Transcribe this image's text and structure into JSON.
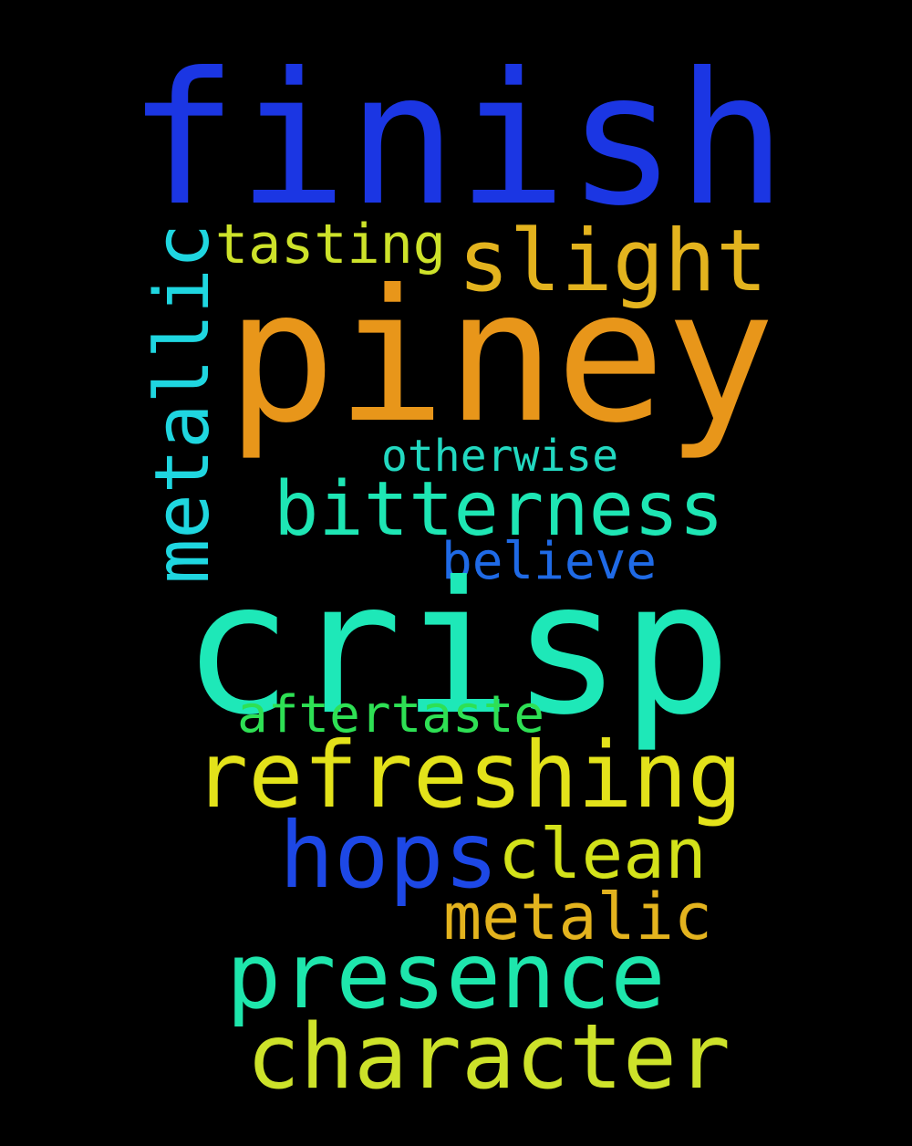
{
  "background_color": "#000000",
  "words": [
    {
      "text": "finish",
      "color": "#1b36e3"
    },
    {
      "text": "tasting",
      "color": "#cde22a"
    },
    {
      "text": "slight",
      "color": "#e3b31e"
    },
    {
      "text": "piney",
      "color": "#e8961a"
    },
    {
      "text": "metallic",
      "color": "#1fd6e0",
      "orientation": "vertical"
    },
    {
      "text": "otherwise",
      "color": "#22d8c0"
    },
    {
      "text": "bitterness",
      "color": "#1ee6b4"
    },
    {
      "text": "believe",
      "color": "#1f6ae6"
    },
    {
      "text": "crisp",
      "color": "#1ee8b8"
    },
    {
      "text": "aftertaste",
      "color": "#2ee054"
    },
    {
      "text": "refreshing",
      "color": "#e3e21a"
    },
    {
      "text": "hops",
      "color": "#1d48e6"
    },
    {
      "text": "clean",
      "color": "#d3e21a"
    },
    {
      "text": "metalic",
      "color": "#e3b31e"
    },
    {
      "text": "presence",
      "color": "#1ee6ac"
    },
    {
      "text": "character",
      "color": "#cde22a"
    }
  ]
}
